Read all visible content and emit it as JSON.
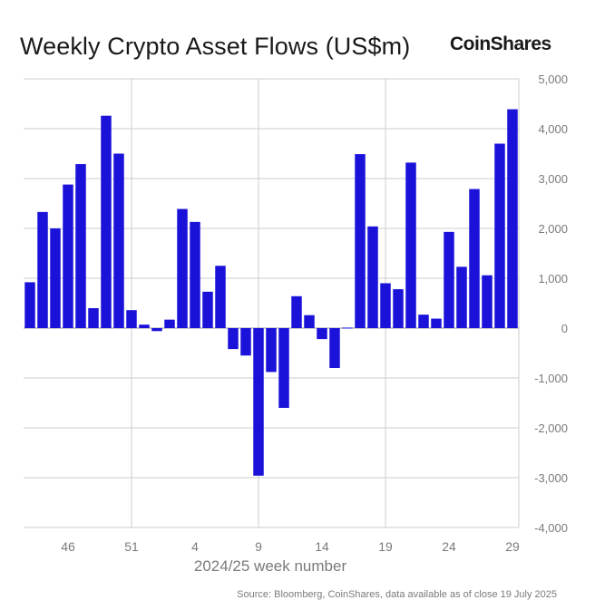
{
  "title": "Weekly Crypto Asset Flows (US$m)",
  "brand": "CoinShares",
  "source": "Source: Bloomberg, CoinShares, data available as of close 19 July 2025",
  "colors": {
    "bar": "#1a12d9",
    "grid": "#cccccc",
    "text": "#7a7a7a"
  },
  "chart_data": {
    "type": "bar",
    "title": "Weekly Crypto Asset Flows (US$m)",
    "xlabel": "2024/25 week number",
    "ylabel": "",
    "ylim": [
      -4000,
      5000
    ],
    "yticks": [
      5000,
      4000,
      3000,
      2000,
      1000,
      0,
      -1000,
      -2000,
      -3000,
      -4000
    ],
    "ytick_labels": [
      "5,000",
      "4,000",
      "3,000",
      "2,000",
      "1,000",
      "0",
      "-1,000",
      "-2,000",
      "-3,000",
      "-4,000"
    ],
    "xtick_labels": [
      "46",
      "51",
      "4",
      "9",
      "14",
      "19",
      "24",
      "29"
    ],
    "xtick_indices": [
      3,
      8,
      13,
      18,
      23,
      28,
      33,
      38
    ],
    "grid": true,
    "categories": [
      "43",
      "44",
      "45",
      "46",
      "47",
      "48",
      "49",
      "50",
      "51",
      "52",
      "1",
      "2",
      "3",
      "4",
      "5",
      "6",
      "7",
      "8",
      "9",
      "10",
      "11",
      "12",
      "13",
      "14",
      "15",
      "16",
      "17",
      "18",
      "19",
      "20",
      "21",
      "22",
      "23",
      "24",
      "25",
      "26",
      "27",
      "28",
      "29"
    ],
    "values": [
      920,
      2330,
      2000,
      2880,
      3290,
      400,
      4260,
      3500,
      360,
      70,
      -60,
      170,
      2390,
      2130,
      730,
      1250,
      -420,
      -550,
      -2960,
      -880,
      -1600,
      640,
      260,
      -220,
      -800,
      10,
      3490,
      2040,
      900,
      780,
      3320,
      270,
      190,
      1930,
      1230,
      2790,
      1060,
      3700,
      4390
    ]
  }
}
